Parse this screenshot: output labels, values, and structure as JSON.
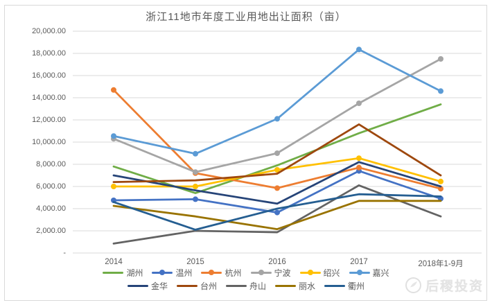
{
  "watermark": {
    "text": "后稷投资"
  },
  "chart_data": {
    "type": "line",
    "title": "浙江11地市年度工业用地出让面积（亩）",
    "categories": [
      "2014",
      "2015",
      "2016",
      "2017",
      "2018年1-9月"
    ],
    "series": [
      {
        "name": "湖州",
        "color": "#70AD47",
        "marker": false,
        "values": [
          7800,
          5400,
          7900,
          10800,
          13400
        ]
      },
      {
        "name": "温州",
        "color": "#4472C4",
        "marker": true,
        "values": [
          4750,
          4850,
          3650,
          7400,
          4900
        ]
      },
      {
        "name": "杭州",
        "color": "#ED7D31",
        "marker": true,
        "values": [
          14700,
          7200,
          5850,
          7700,
          5800
        ]
      },
      {
        "name": "宁波",
        "color": "#A5A5A5",
        "marker": true,
        "values": [
          10300,
          7300,
          9000,
          13500,
          17500
        ]
      },
      {
        "name": "绍兴",
        "color": "#FFC000",
        "marker": true,
        "values": [
          6000,
          6000,
          7500,
          8550,
          6450
        ]
      },
      {
        "name": "嘉兴",
        "color": "#5B9BD5",
        "marker": true,
        "values": [
          10550,
          8950,
          12100,
          18350,
          14600
        ]
      },
      {
        "name": "金华",
        "color": "#264478",
        "marker": false,
        "values": [
          7000,
          5650,
          4450,
          8200,
          6000
        ]
      },
      {
        "name": "台州",
        "color": "#9E480E",
        "marker": false,
        "values": [
          6400,
          6550,
          7150,
          11600,
          7000
        ]
      },
      {
        "name": "舟山",
        "color": "#636363",
        "marker": false,
        "values": [
          850,
          2000,
          1870,
          6100,
          3300
        ]
      },
      {
        "name": "丽水",
        "color": "#997300",
        "marker": false,
        "values": [
          4250,
          3300,
          2150,
          4700,
          4700
        ]
      },
      {
        "name": "衢州",
        "color": "#255E91",
        "marker": false,
        "values": [
          4600,
          2100,
          4000,
          5300,
          5100
        ]
      }
    ],
    "ylim": [
      0,
      20000
    ],
    "ytick_step": 2000,
    "zero_tick_label": "-",
    "grid": true,
    "gridline_color": "#D9D9D9",
    "axis_text_color": "#595959",
    "legend_position": "bottom",
    "legend_rows": [
      [
        "湖州",
        "温州",
        "杭州",
        "宁波",
        "绍兴",
        "嘉兴"
      ],
      [
        "金华",
        "台州",
        "舟山",
        "丽水",
        "衢州"
      ]
    ]
  }
}
